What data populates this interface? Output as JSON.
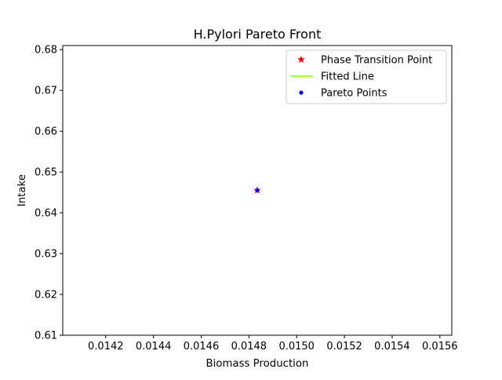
{
  "chart_data": {
    "type": "scatter",
    "title": "H.Pylori Pareto Front",
    "xlabel": "Biomass Production",
    "ylabel": "Intake",
    "xlim": [
      0.01402,
      0.01565
    ],
    "ylim": [
      0.61,
      0.681
    ],
    "x_ticks": [
      0.0142,
      0.0144,
      0.0146,
      0.0148,
      0.015,
      0.0152,
      0.0154,
      0.0156
    ],
    "x_tick_labels": [
      "0.0142",
      "0.0144",
      "0.0146",
      "0.0148",
      "0.0150",
      "0.0152",
      "0.0154",
      "0.0156"
    ],
    "y_ticks": [
      0.61,
      0.62,
      0.63,
      0.64,
      0.65,
      0.66,
      0.67,
      0.68
    ],
    "y_tick_labels": [
      "0.61",
      "0.62",
      "0.63",
      "0.64",
      "0.65",
      "0.66",
      "0.67",
      "0.68"
    ],
    "grid": false,
    "legend_position": "top-right",
    "series": [
      {
        "name": "Phase Transition Point",
        "kind": "marker",
        "marker": "star",
        "color": "#ff0000",
        "points": [
          [
            0.014835,
            0.6455
          ]
        ]
      },
      {
        "name": "Fitted Line",
        "kind": "line",
        "color": "#7fff00",
        "points": [
          [
            0.014835,
            0.6455
          ]
        ]
      },
      {
        "name": "Pareto Points",
        "kind": "marker",
        "marker": "dot",
        "color": "#0000ff",
        "points": [
          [
            0.014835,
            0.6455
          ]
        ]
      }
    ]
  }
}
